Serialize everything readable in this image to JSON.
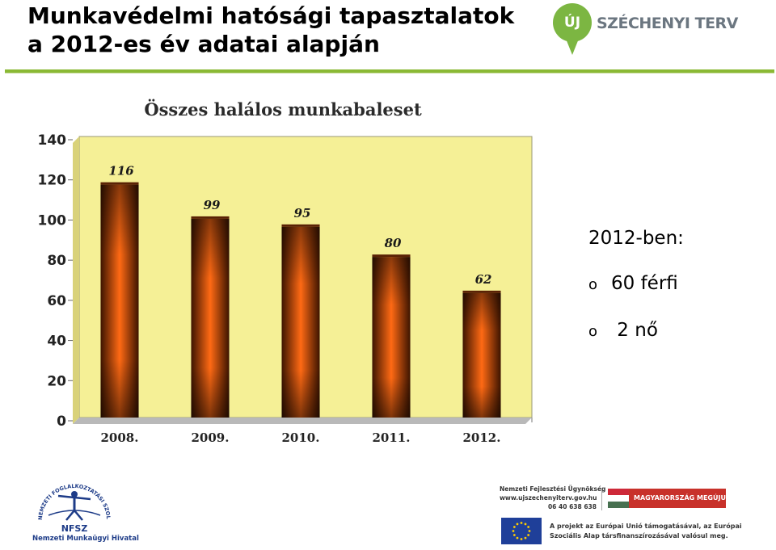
{
  "header": {
    "title_line1": "Munkavédelmi hatósági tapasztalatok",
    "title_line2": "a 2012-es év adatai alapján",
    "accent_color": "#8ab934"
  },
  "logos": {
    "uj_szechenyi": {
      "pin_text": "ÚJ",
      "name": "SZÉCHENYI TERV",
      "color": "#7cb642"
    },
    "nfsz": {
      "abbr": "NFSZ",
      "arc_text": "NEMZETI FOGLALKOZTATÁSI SZOLGÁLAT",
      "name": "Nemzeti Munkaügyi Hivatal"
    },
    "nfu": {
      "line1": "Nemzeti Fejlesztési Ügynökség",
      "line2": "www.ujszechenyiterv.gov.hu",
      "phone": "06 40 638 638"
    },
    "hungary_badge": {
      "text": "MAGYARORSZÁG MEGÚJUL"
    },
    "eu": {
      "line1": "A projekt az Európai Unió támogatásával, az Európai",
      "line2": "Szociális Alap társfinanszírozásával valósul meg."
    }
  },
  "chart_data": {
    "type": "bar",
    "title": "Összes halálos munkabaleset",
    "categories": [
      "2008.",
      "2009.",
      "2010.",
      "2011.",
      "2012."
    ],
    "values": [
      116,
      99,
      95,
      80,
      62
    ],
    "xlabel": "",
    "ylabel": "",
    "ylim": [
      0,
      140
    ],
    "yticks": [
      0,
      20,
      40,
      60,
      80,
      100,
      120,
      140
    ],
    "grid": false,
    "legend": "none",
    "data_labels": true,
    "plot_background": "#f5f096",
    "bar_color_center": "#ff6a14",
    "bar_color_edge": "#3d1400"
  },
  "side_panel": {
    "heading": "2012-ben:",
    "bullet_symbol": "o",
    "items": [
      "60 férfi",
      " 2 nő"
    ]
  }
}
